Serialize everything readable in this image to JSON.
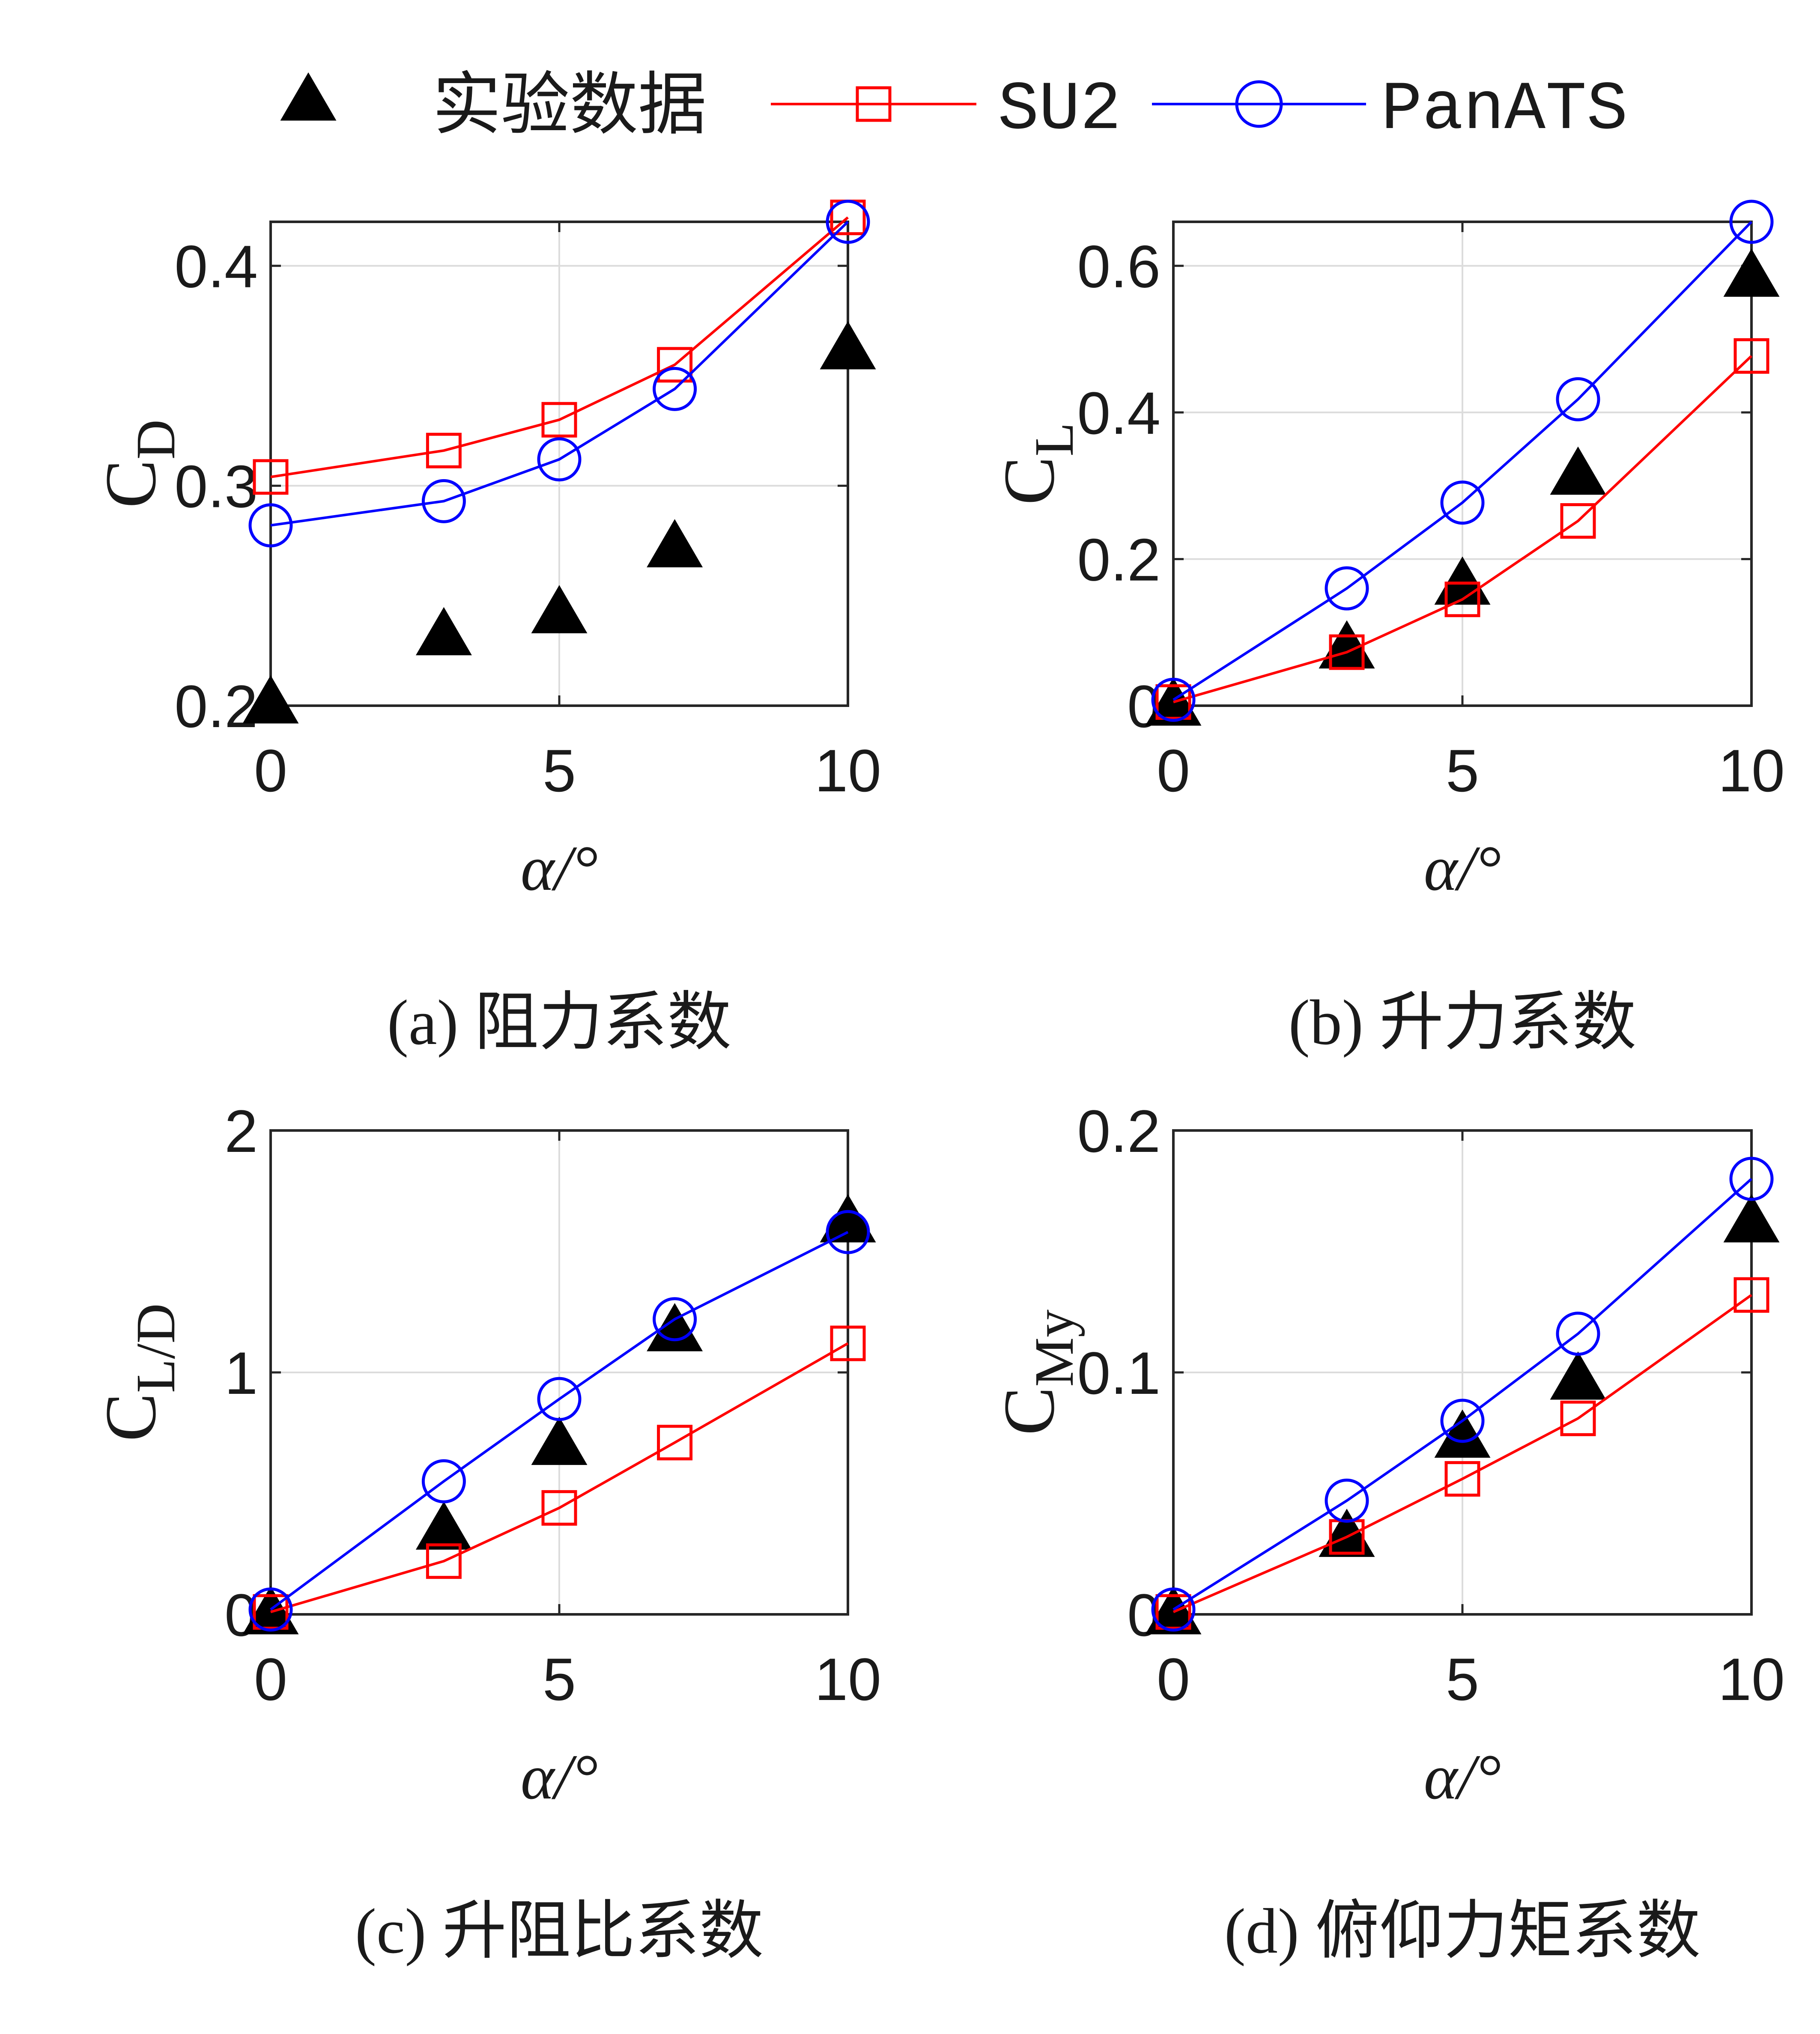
{
  "legend": {
    "items": [
      {
        "label": "实验数据",
        "color": "#000000",
        "marker": "triangle-filled"
      },
      {
        "label": "SU2",
        "color": "#ff0000",
        "marker": "square-open"
      },
      {
        "label": "PanATS",
        "color": "#0000ff",
        "marker": "circle-open"
      }
    ]
  },
  "chart_data": [
    {
      "type": "line",
      "caption": "(a)  阻力系数",
      "ylabel": {
        "main": "C",
        "sub": "D"
      },
      "xlabel": "α/°",
      "xlim": [
        0,
        10
      ],
      "ylim": [
        0.2,
        0.42
      ],
      "xticks": [
        0,
        5,
        10
      ],
      "yticks": [
        0.2,
        0.3,
        0.4
      ],
      "ytick_labels": [
        "0.2",
        "0.3",
        "0.4"
      ],
      "grid": true,
      "x": [
        0,
        3,
        5,
        7,
        10
      ],
      "series": [
        {
          "name": "实验数据",
          "values": [
            0.201,
            0.232,
            0.242,
            0.272,
            0.362
          ]
        },
        {
          "name": "SU2",
          "values": [
            0.304,
            0.316,
            0.33,
            0.355,
            0.422
          ]
        },
        {
          "name": "PanATS",
          "values": [
            0.282,
            0.293,
            0.312,
            0.344,
            0.42
          ]
        }
      ]
    },
    {
      "type": "line",
      "caption": "(b)  升力系数",
      "ylabel": {
        "main": "C",
        "sub": "L"
      },
      "xlabel": "α/°",
      "xlim": [
        0,
        10
      ],
      "ylim": [
        0,
        0.66
      ],
      "xticks": [
        0,
        5,
        10
      ],
      "yticks": [
        0,
        0.2,
        0.4,
        0.6
      ],
      "ytick_labels": [
        "0",
        "0.2",
        "0.4",
        "0.6"
      ],
      "grid": true,
      "x": [
        0,
        3,
        5,
        7,
        10
      ],
      "series": [
        {
          "name": "实验数据",
          "values": [
            0.0,
            0.078,
            0.165,
            0.315,
            0.585
          ]
        },
        {
          "name": "SU2",
          "values": [
            0.005,
            0.073,
            0.145,
            0.252,
            0.477
          ]
        },
        {
          "name": "PanATS",
          "values": [
            0.008,
            0.16,
            0.277,
            0.418,
            0.66
          ]
        }
      ]
    },
    {
      "type": "line",
      "caption": "(c)  升阻比系数",
      "ylabel": {
        "main": "C",
        "sub": "L/D"
      },
      "xlabel": "α/°",
      "xlim": [
        0,
        10
      ],
      "ylim": [
        0,
        2
      ],
      "xticks": [
        0,
        5,
        10
      ],
      "yticks": [
        0,
        1,
        2
      ],
      "ytick_labels": [
        "0",
        "1",
        "2"
      ],
      "grid": true,
      "x": [
        0,
        3,
        5,
        7,
        10
      ],
      "series": [
        {
          "name": "实验数据",
          "values": [
            0.0,
            0.35,
            0.7,
            1.17,
            1.62
          ]
        },
        {
          "name": "SU2",
          "values": [
            0.01,
            0.22,
            0.44,
            0.71,
            1.12
          ]
        },
        {
          "name": "PanATS",
          "values": [
            0.02,
            0.55,
            0.89,
            1.22,
            1.58
          ]
        }
      ]
    },
    {
      "type": "line",
      "caption": "(d)  俯仰力矩系数",
      "ylabel": {
        "main": "C",
        "sub": "My"
      },
      "xlabel": "α/°",
      "xlim": [
        0,
        10
      ],
      "ylim": [
        0,
        0.2
      ],
      "xticks": [
        0,
        5,
        10
      ],
      "yticks": [
        0,
        0.1,
        0.2
      ],
      "ytick_labels": [
        "0",
        "0.1",
        "0.2"
      ],
      "grid": true,
      "x": [
        0,
        3,
        5,
        7,
        10
      ],
      "series": [
        {
          "name": "实验数据",
          "values": [
            0.0,
            0.032,
            0.073,
            0.097,
            0.162
          ]
        },
        {
          "name": "SU2",
          "values": [
            0.001,
            0.032,
            0.056,
            0.081,
            0.132
          ]
        },
        {
          "name": "PanATS",
          "values": [
            0.002,
            0.047,
            0.08,
            0.116,
            0.18
          ]
        }
      ]
    }
  ]
}
